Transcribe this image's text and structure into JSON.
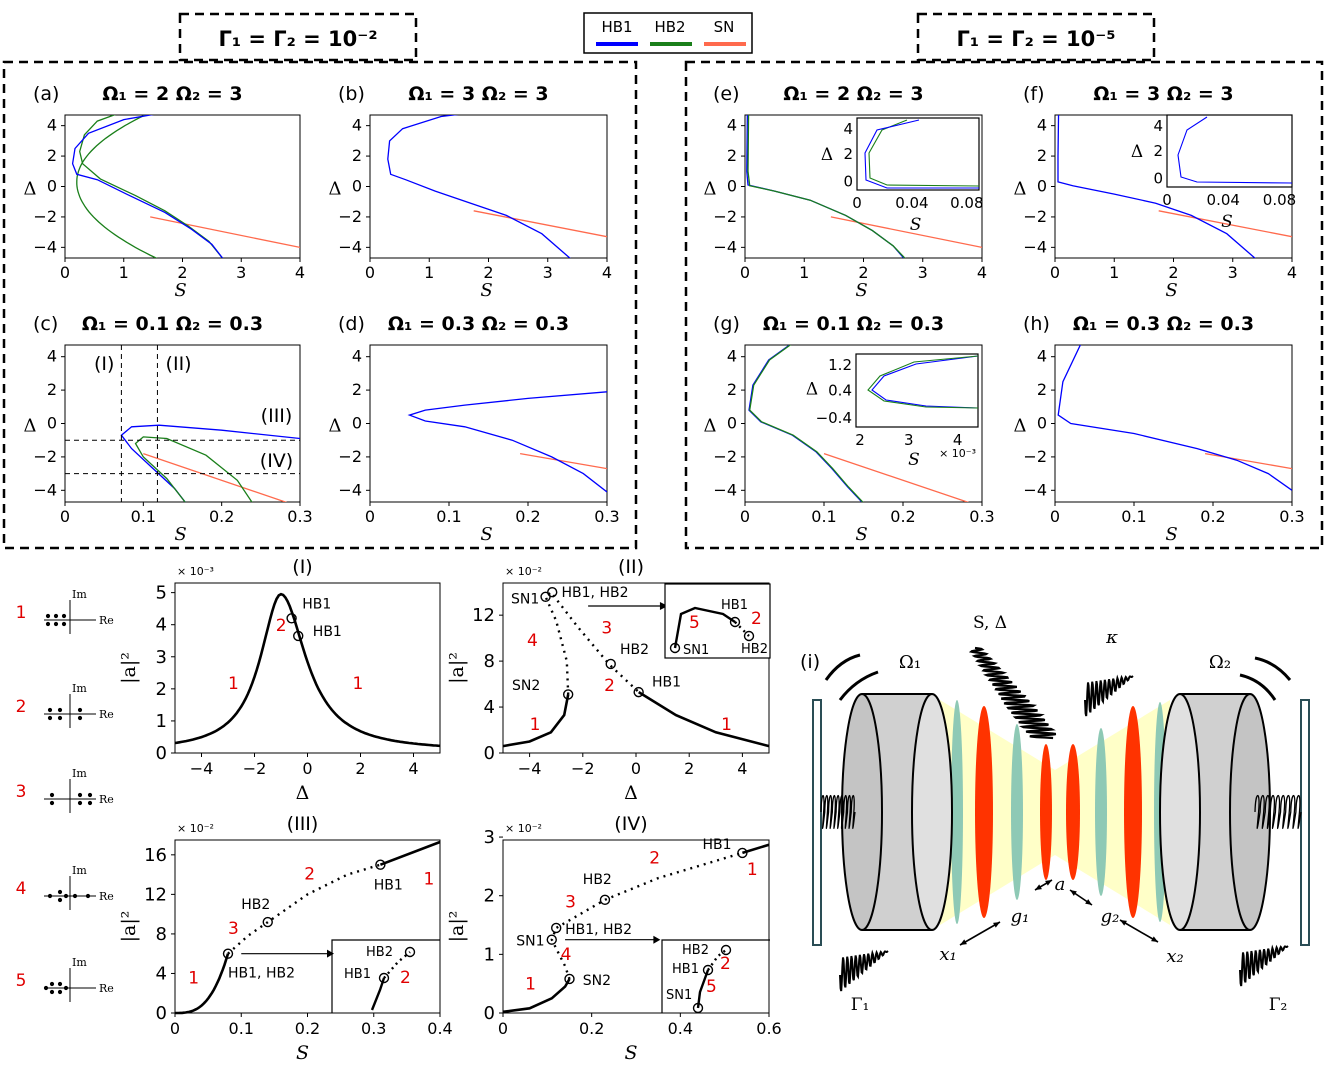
{
  "header": {
    "gamma_left": "Γ₁ = Γ₂ = 10⁻²",
    "gamma_right": "Γ₁ = Γ₂ = 10⁻⁵",
    "legend": [
      {
        "label": "HB1",
        "color": "#0000ff"
      },
      {
        "label": "HB2",
        "color": "#1a7f1a"
      },
      {
        "label": "SN",
        "color": "#ff6a4d"
      }
    ]
  },
  "colors": {
    "hb1": "#0000ff",
    "hb2": "#1a7f1a",
    "sn": "#ff6a4d",
    "red_text": "#e00000",
    "panel_i_yellow": "#ffffc8",
    "panel_i_teal": "#8ec9b5",
    "panel_i_red": "#ff3300"
  },
  "panels": [
    {
      "tag": "(a)",
      "title": "Ω₁ = 2   Ω₂ = 3",
      "xlabel": "S",
      "ylabel": "Δ",
      "xticks": [
        "0",
        "1",
        "2",
        "3",
        "4"
      ],
      "yticks": [
        "4",
        "2",
        "0",
        "−2",
        "−4"
      ]
    },
    {
      "tag": "(b)",
      "title": "Ω₁ = 3   Ω₂ = 3",
      "xlabel": "S",
      "ylabel": "Δ",
      "xticks": [
        "0",
        "1",
        "2",
        "3",
        "4"
      ],
      "yticks": [
        "4",
        "2",
        "0",
        "−2",
        "−4"
      ]
    },
    {
      "tag": "(c)",
      "title": "Ω₁ = 0.1   Ω₂ = 0.3",
      "xlabel": "S",
      "ylabel": "Δ",
      "xticks": [
        "0",
        "0.1",
        "0.2",
        "0.3"
      ],
      "yticks": [
        "4",
        "2",
        "0",
        "−2",
        "−4"
      ],
      "annotations": [
        "(I)",
        "(II)",
        "(III)",
        "(IV)"
      ]
    },
    {
      "tag": "(d)",
      "title": "Ω₁ = 0.3   Ω₂ = 0.3",
      "xlabel": "S",
      "ylabel": "Δ",
      "xticks": [
        "0",
        "0.1",
        "0.2",
        "0.3"
      ],
      "yticks": [
        "4",
        "2",
        "0",
        "−2",
        "−4"
      ]
    },
    {
      "tag": "(e)",
      "title": "Ω₁ = 2   Ω₂ = 3",
      "xlabel": "S",
      "ylabel": "Δ",
      "xticks": [
        "0",
        "1",
        "2",
        "3",
        "4"
      ],
      "yticks": [
        "4",
        "2",
        "0",
        "−2",
        "−4"
      ],
      "inset": {
        "ylabel": "Δ",
        "xlabel": "S",
        "xticks": [
          "0",
          "0.04",
          "0.08"
        ],
        "yticks": [
          "4",
          "2",
          "0"
        ]
      }
    },
    {
      "tag": "(f)",
      "title": "Ω₁ = 3   Ω₂ = 3",
      "xlabel": "S",
      "ylabel": "Δ",
      "xticks": [
        "0",
        "1",
        "2",
        "3",
        "4"
      ],
      "yticks": [
        "4",
        "2",
        "0",
        "−2",
        "−4"
      ],
      "inset": {
        "ylabel": "Δ",
        "xlabel": "S",
        "xticks": [
          "0",
          "0.04",
          "0.08"
        ],
        "yticks": [
          "4",
          "2",
          "0"
        ]
      }
    },
    {
      "tag": "(g)",
      "title": "Ω₁ = 0.1   Ω₂ = 0.3",
      "xlabel": "S",
      "ylabel": "Δ",
      "xticks": [
        "0",
        "0.1",
        "0.2",
        "0.3"
      ],
      "yticks": [
        "4",
        "2",
        "0",
        "−2",
        "−4"
      ],
      "inset": {
        "ylabel": "Δ",
        "xlabel": "S",
        "xticks": [
          "2",
          "3",
          "4"
        ],
        "yticks": [
          "1.2",
          "0.4",
          "−0.4"
        ],
        "xmult": "× 10⁻³"
      }
    },
    {
      "tag": "(h)",
      "title": "Ω₁ = 0.3   Ω₂ = 0.3",
      "xlabel": "S",
      "ylabel": "Δ",
      "xticks": [
        "0",
        "0.1",
        "0.2",
        "0.3"
      ],
      "yticks": [
        "4",
        "2",
        "0",
        "−2",
        "−4"
      ]
    }
  ],
  "bottom": {
    "legend_numbers": [
      "1",
      "2",
      "3",
      "4",
      "5"
    ],
    "im_label": "Im",
    "re_label": "Re",
    "p1": {
      "title": "(I)",
      "mult": "× 10⁻³",
      "xlabel": "Δ",
      "ylabel": "|a|²",
      "xticks": [
        "−4",
        "−2",
        "0",
        "2",
        "4"
      ],
      "yticks": [
        "0",
        "1",
        "2",
        "3",
        "4",
        "5"
      ],
      "labels": {
        "hb1a": "HB1",
        "hb1b": "HB1",
        "n2": "2",
        "n1a": "1",
        "n1b": "1"
      }
    },
    "p2": {
      "title": "(II)",
      "mult": "× 10⁻²",
      "xlabel": "Δ",
      "ylabel": "|a|²",
      "xticks": [
        "−4",
        "−2",
        "0",
        "2",
        "4"
      ],
      "yticks": [
        "0",
        "4",
        "8",
        "12"
      ],
      "labels": {
        "sn1": "SN1",
        "sn2": "SN2",
        "hb12": "HB1, HB2",
        "hb2": "HB2",
        "hb1": "HB1",
        "n4": "4",
        "n3": "3",
        "n2": "2",
        "n1a": "1",
        "n1b": "1",
        "in_hb1": "HB1",
        "in_hb2": "HB2",
        "in_sn1": "SN1",
        "in_n5": "5",
        "in_n2": "2"
      }
    },
    "p3": {
      "title": "(III)",
      "mult": "× 10⁻²",
      "xlabel": "S",
      "ylabel": "|a|²",
      "xticks": [
        "0",
        "0.1",
        "0.2",
        "0.3",
        "0.4"
      ],
      "yticks": [
        "0",
        "4",
        "8",
        "12",
        "16"
      ],
      "labels": {
        "hb2": "HB2",
        "hb1": "HB1",
        "hb12": "HB1, HB2",
        "n1": "1",
        "n3": "3",
        "n2": "2",
        "n1b": "1",
        "in_hb2": "HB2",
        "in_hb1": "HB1",
        "in_n2": "2"
      }
    },
    "p4": {
      "title": "(IV)",
      "mult": "× 10⁻²",
      "xlabel": "S",
      "ylabel": "|a|²",
      "xticks": [
        "0",
        "0.2",
        "0.4",
        "0.6"
      ],
      "yticks": [
        "0",
        "1",
        "2",
        "3"
      ],
      "labels": {
        "hb1": "HB1",
        "hb2": "HB2",
        "sn1": "SN1",
        "hb12": "HB1, HB2",
        "sn2": "SN2",
        "n1": "1",
        "n4": "4",
        "n3": "3",
        "n2": "2",
        "n1b": "1",
        "in_hb2": "HB2",
        "in_hb1": "HB1",
        "in_sn1": "SN1",
        "in_n2": "2",
        "in_n5": "5"
      }
    }
  },
  "schematic": {
    "tag": "(i)",
    "omega1": "Ω₁",
    "omega2": "Ω₂",
    "sdelta": "S, Δ",
    "kappa": "κ",
    "a": "a",
    "g1": "g₁",
    "g2": "g₂",
    "x1": "x₁",
    "x2": "x₂",
    "gamma1": "Γ₁",
    "gamma2": "Γ₂"
  }
}
